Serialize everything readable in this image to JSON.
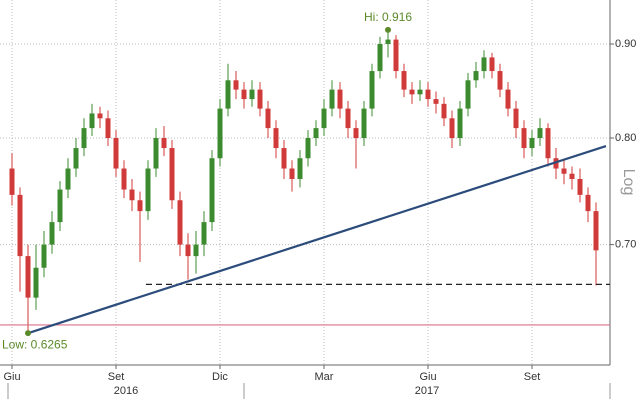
{
  "chart_data": {
    "type": "candlestick",
    "scale": "log",
    "grid": true,
    "axis_label": "Log",
    "up_color": "#3d8b2f",
    "down_color": "#d03a3a",
    "categories": [
      "Giu",
      null,
      null,
      null,
      null,
      null,
      null,
      null,
      null,
      null,
      null,
      null,
      null,
      "Set",
      null,
      null,
      null,
      null,
      null,
      null,
      null,
      null,
      null,
      null,
      null,
      null,
      "Dic",
      null,
      null,
      null,
      null,
      null,
      null,
      null,
      null,
      null,
      null,
      null,
      null,
      "Mar",
      null,
      null,
      null,
      null,
      null,
      null,
      null,
      null,
      null,
      null,
      null,
      null,
      "Giu",
      null,
      null,
      null,
      null,
      null,
      null,
      null,
      null,
      null,
      null,
      null,
      null,
      "Set",
      null,
      null,
      null,
      null,
      null,
      null,
      null,
      null
    ],
    "year_labels": [
      "2016",
      "2017"
    ],
    "open": [
      0.77,
      0.745,
      0.69,
      0.655,
      0.68,
      0.7,
      0.72,
      0.75,
      0.77,
      0.79,
      0.81,
      0.825,
      0.82,
      0.8,
      0.77,
      0.75,
      0.74,
      0.73,
      0.77,
      0.8,
      0.79,
      0.74,
      0.7,
      0.69,
      0.7,
      0.72,
      0.78,
      0.83,
      0.86,
      0.85,
      0.84,
      0.85,
      0.83,
      0.81,
      0.79,
      0.77,
      0.76,
      0.78,
      0.8,
      0.81,
      0.83,
      0.85,
      0.83,
      0.81,
      0.8,
      0.83,
      0.87,
      0.9,
      0.905,
      0.87,
      0.85,
      0.845,
      0.85,
      0.84,
      0.835,
      0.82,
      0.8,
      0.83,
      0.86,
      0.87,
      0.885,
      0.87,
      0.85,
      0.83,
      0.81,
      0.79,
      0.8,
      0.81,
      0.78,
      0.77,
      0.765,
      0.76,
      0.745,
      0.73
    ],
    "high": [
      0.785,
      0.752,
      0.7,
      0.7,
      0.712,
      0.73,
      0.758,
      0.78,
      0.8,
      0.82,
      0.835,
      0.832,
      0.828,
      0.808,
      0.778,
      0.76,
      0.748,
      0.778,
      0.81,
      0.812,
      0.798,
      0.748,
      0.71,
      0.712,
      0.73,
      0.788,
      0.84,
      0.878,
      0.87,
      0.858,
      0.86,
      0.858,
      0.838,
      0.818,
      0.798,
      0.778,
      0.788,
      0.808,
      0.818,
      0.84,
      0.86,
      0.858,
      0.838,
      0.818,
      0.838,
      0.878,
      0.908,
      0.916,
      0.91,
      0.878,
      0.858,
      0.86,
      0.858,
      0.848,
      0.842,
      0.828,
      0.838,
      0.868,
      0.88,
      0.893,
      0.89,
      0.878,
      0.858,
      0.838,
      0.818,
      0.808,
      0.82,
      0.815,
      0.79,
      0.778,
      0.772,
      0.77,
      0.752,
      0.738
    ],
    "low": [
      0.735,
      0.66,
      0.6265,
      0.645,
      0.672,
      0.692,
      0.712,
      0.742,
      0.762,
      0.782,
      0.802,
      0.81,
      0.792,
      0.762,
      0.742,
      0.73,
      0.685,
      0.722,
      0.762,
      0.782,
      0.732,
      0.69,
      0.67,
      0.675,
      0.69,
      0.712,
      0.772,
      0.822,
      0.84,
      0.83,
      0.832,
      0.822,
      0.8,
      0.78,
      0.76,
      0.748,
      0.752,
      0.772,
      0.792,
      0.802,
      0.822,
      0.82,
      0.8,
      0.77,
      0.792,
      0.822,
      0.862,
      0.885,
      0.862,
      0.842,
      0.835,
      0.838,
      0.832,
      0.825,
      0.812,
      0.79,
      0.792,
      0.822,
      0.852,
      0.862,
      0.862,
      0.842,
      0.822,
      0.8,
      0.78,
      0.782,
      0.792,
      0.772,
      0.76,
      0.755,
      0.75,
      0.738,
      0.72,
      0.665
    ],
    "close": [
      0.745,
      0.69,
      0.655,
      0.68,
      0.7,
      0.72,
      0.75,
      0.77,
      0.79,
      0.81,
      0.825,
      0.82,
      0.8,
      0.77,
      0.75,
      0.74,
      0.73,
      0.77,
      0.8,
      0.79,
      0.74,
      0.7,
      0.69,
      0.7,
      0.72,
      0.78,
      0.83,
      0.86,
      0.85,
      0.84,
      0.85,
      0.83,
      0.81,
      0.79,
      0.77,
      0.76,
      0.78,
      0.8,
      0.81,
      0.83,
      0.85,
      0.83,
      0.81,
      0.8,
      0.83,
      0.87,
      0.9,
      0.905,
      0.87,
      0.85,
      0.845,
      0.85,
      0.84,
      0.835,
      0.82,
      0.8,
      0.83,
      0.86,
      0.87,
      0.885,
      0.87,
      0.85,
      0.83,
      0.81,
      0.79,
      0.8,
      0.81,
      0.78,
      0.77,
      0.765,
      0.76,
      0.745,
      0.73,
      0.695
    ],
    "ylim": [
      0.602,
      0.951
    ],
    "yticks": [
      {
        "value": 0.7,
        "label": "0.70"
      },
      {
        "value": 0.8,
        "label": "0.80"
      },
      {
        "value": 0.9,
        "label": "0.90"
      }
    ],
    "annotations": [
      {
        "text": "Hi: 0.916",
        "value": 0.916,
        "color": "#5a8a2a"
      },
      {
        "text": "Low: 0.6265",
        "value": 0.6265,
        "color": "#5a8a2a"
      }
    ],
    "trendline": {
      "start": 0.6265,
      "end": 0.792,
      "color": "#2c4c7c"
    },
    "reference_lines": [
      {
        "value": 0.666,
        "style": "dashed",
        "color": "#222222"
      },
      {
        "value": 0.633,
        "style": "solid",
        "color": "#d9708a"
      }
    ]
  }
}
